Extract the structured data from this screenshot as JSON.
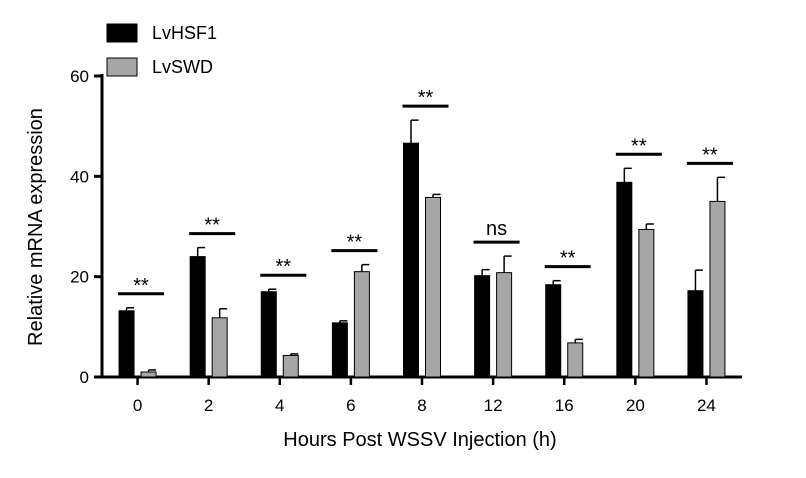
{
  "chart_data": {
    "type": "bar",
    "xlabel": "Hours Post WSSV Injection (h)",
    "ylabel": "Relative mRNA expression",
    "ylim": [
      0,
      60
    ],
    "yticks": [
      0,
      20,
      40,
      60
    ],
    "categories": [
      "0",
      "2",
      "4",
      "6",
      "8",
      "12",
      "16",
      "20",
      "24"
    ],
    "series": [
      {
        "name": "LvHSF1",
        "color": "#000000",
        "values": [
          13.2,
          24.0,
          17.0,
          10.8,
          46.6,
          20.2,
          18.4,
          38.8,
          17.2
        ],
        "errors": [
          0.6,
          1.8,
          0.5,
          0.4,
          4.6,
          1.2,
          0.8,
          2.8,
          4.1
        ]
      },
      {
        "name": "LvSWD",
        "color": "#a6a6a6",
        "values": [
          1.0,
          11.8,
          4.3,
          21.0,
          35.8,
          20.8,
          6.8,
          29.4,
          35.0
        ],
        "errors": [
          0.4,
          1.8,
          0.3,
          1.4,
          0.6,
          3.3,
          0.7,
          1.1,
          4.8
        ]
      }
    ],
    "significance": [
      "**",
      "**",
      "**",
      "**",
      "**",
      "ns",
      "**",
      "**",
      "**"
    ],
    "legend": "top-left",
    "grid": false
  }
}
